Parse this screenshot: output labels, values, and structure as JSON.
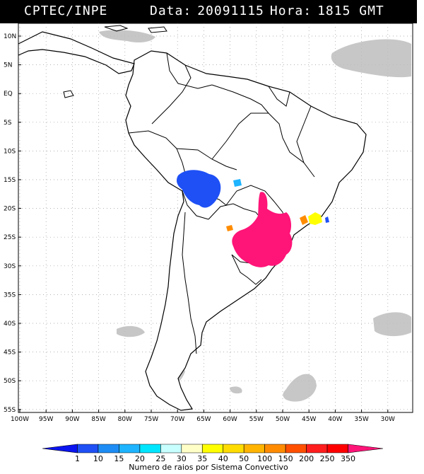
{
  "header": {
    "organization": "CPTEC/INPE",
    "date_label": "Data:",
    "date_value": "20091115",
    "hour_label": "Hora:",
    "hour_value": "1815 GMT"
  },
  "map": {
    "lat_labels": [
      "10N",
      "5N",
      "EQ",
      "5S",
      "10S",
      "15S",
      "20S",
      "25S",
      "30S",
      "35S",
      "40S",
      "45S",
      "50S",
      "55S"
    ],
    "lon_labels": [
      "100W",
      "95W",
      "90W",
      "85W",
      "80W",
      "75W",
      "70W",
      "65W",
      "60W",
      "55W",
      "50W",
      "45W",
      "40W",
      "35W",
      "30W"
    ],
    "lon_range": [
      -100,
      -30
    ],
    "lat_range": [
      -55,
      10
    ],
    "grid": "dotted"
  },
  "legend": {
    "title": "Numero de raios por Sistema Convectivo",
    "ticks": [
      "1",
      "10",
      "15",
      "20",
      "25",
      "30",
      "35",
      "40",
      "50",
      "100",
      "150",
      "200",
      "250",
      "350"
    ],
    "colors": [
      "#0a14f0",
      "#1e50f5",
      "#1e8cf5",
      "#1eb4ff",
      "#00e6ff",
      "#c8ffff",
      "#ffffc8",
      "#ffff00",
      "#ffdc00",
      "#ffb400",
      "#ff8c00",
      "#ff5000",
      "#ff1e1e",
      "#ff0000",
      "#ff1478"
    ]
  }
}
